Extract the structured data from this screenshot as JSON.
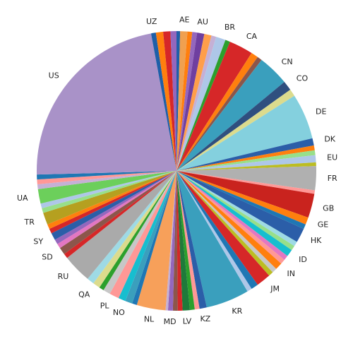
{
  "chart_data": {
    "type": "pie",
    "categories": [
      null,
      "AE",
      null,
      null,
      "AU",
      null,
      null,
      "BR",
      null,
      "CA",
      null,
      null,
      "CN",
      "CO",
      null,
      "DE",
      "DK",
      null,
      null,
      "EU",
      null,
      "FR",
      null,
      "GB",
      "GE",
      null,
      "HK",
      null,
      null,
      "ID",
      null,
      null,
      "IN",
      null,
      null,
      "JM",
      null,
      null,
      "KR",
      "KZ",
      null,
      null,
      "LV",
      null,
      null,
      "MD",
      null,
      "NL",
      null,
      "NO",
      null,
      "PL",
      null,
      null,
      "QA",
      null,
      "RU",
      null,
      "SD",
      null,
      null,
      "SY",
      null,
      null,
      "TR",
      null,
      null,
      "UA",
      null,
      null,
      null,
      "US",
      "UZ",
      null,
      null,
      null
    ],
    "values": [
      1.5,
      3,
      2,
      2,
      3,
      3,
      2,
      4,
      2,
      10,
      3,
      2,
      13,
      4,
      3,
      19,
      3,
      2,
      2,
      3,
      1.5,
      10,
      1.5,
      10,
      3,
      2,
      6,
      2,
      2,
      3,
      2,
      2,
      3,
      2,
      2,
      6,
      3,
      2,
      18,
      3,
      2,
      2,
      3,
      2,
      2,
      2,
      1,
      12,
      2,
      3,
      3,
      4,
      3,
      2,
      3,
      3,
      12,
      2,
      3,
      2,
      2,
      3,
      2,
      2,
      5,
      2,
      2,
      6,
      2,
      2,
      2,
      81,
      2,
      3,
      3,
      2.5
    ],
    "colors": [
      "#1f5fa8",
      "#f0a050",
      "#ff7f0e",
      "#9467bd",
      "#6f3fa0",
      "#ff9e4a",
      "#c5b0d5",
      "#aec7e8",
      "#2ca02c",
      "#d62728",
      "#ff7f0e",
      "#8c564b",
      "#3a9fbd",
      "#2f4f7f",
      "#dbdb8d",
      "#84d0de",
      "#2b5ea8",
      "#ff7f0e",
      "#98df8a",
      "#aec7e8",
      "#bcbd22",
      "#b0b0b0",
      "#ff9896",
      "#c9231e",
      "#ff7f0e",
      "#1f77b4",
      "#2b5ea8",
      "#9edae5",
      "#98df8a",
      "#17becf",
      "#e377c2",
      "#ff9896",
      "#ff7f0e",
      "#c7c7c7",
      "#bcbd22",
      "#d62728",
      "#1f77b4",
      "#aec7e8",
      "#3a9fbd",
      "#2b5ea8",
      "#ff9896",
      "#2ca02c",
      "#1f7a3a",
      "#d62728",
      "#8c564b",
      "#9467bd",
      "#c5b0d5",
      "#f7a05a",
      "#1f77b4",
      "#3a9fbd",
      "#17becf",
      "#ff9896",
      "#c7c7c7",
      "#2ca02c",
      "#dbdb8d",
      "#9edae5",
      "#aaaaaa",
      "#d62728",
      "#8c564b",
      "#e377c2",
      "#9467bd",
      "#2b5ea8",
      "#d62728",
      "#ff7f0e",
      "#b5a020",
      "#98df8a",
      "#aec7e8",
      "#6ccf5b",
      "#c5b0d5",
      "#ff9896",
      "#1f77b4",
      "#a992c8",
      "#1f5fa8",
      "#ff7f0e",
      "#d62728",
      "#9467bd"
    ]
  }
}
